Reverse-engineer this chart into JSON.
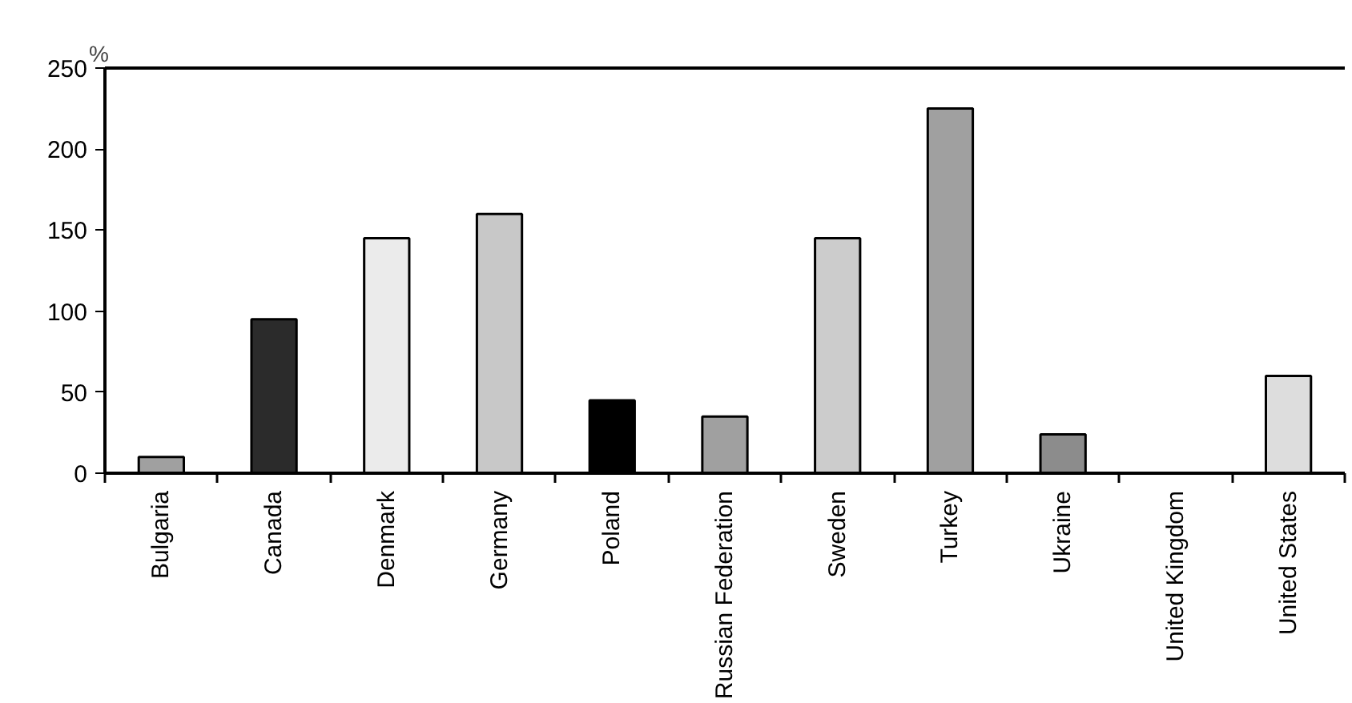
{
  "chart_data": {
    "type": "bar",
    "ylabel": "%",
    "categories": [
      "Bulgaria",
      "Canada",
      "Denmark",
      "Germany",
      "Poland",
      "Russian Federation",
      "Sweden",
      "Turkey",
      "Ukraine",
      "United Kingdom",
      "United States"
    ],
    "values": [
      10,
      95,
      145,
      160,
      45,
      35,
      145,
      225,
      24,
      null,
      60
    ],
    "colors": [
      "#a0a0a0",
      "#2b2b2b",
      "#ebebeb",
      "#c8c8c8",
      "#000000",
      "#a0a0a0",
      "#cccccc",
      "#a0a0a0",
      "#8c8c8c",
      "#b0b0b0",
      "#dddddd"
    ],
    "ylim": [
      0,
      250
    ],
    "yticks": [
      0,
      50,
      100,
      150,
      200,
      250
    ],
    "grid": false
  }
}
